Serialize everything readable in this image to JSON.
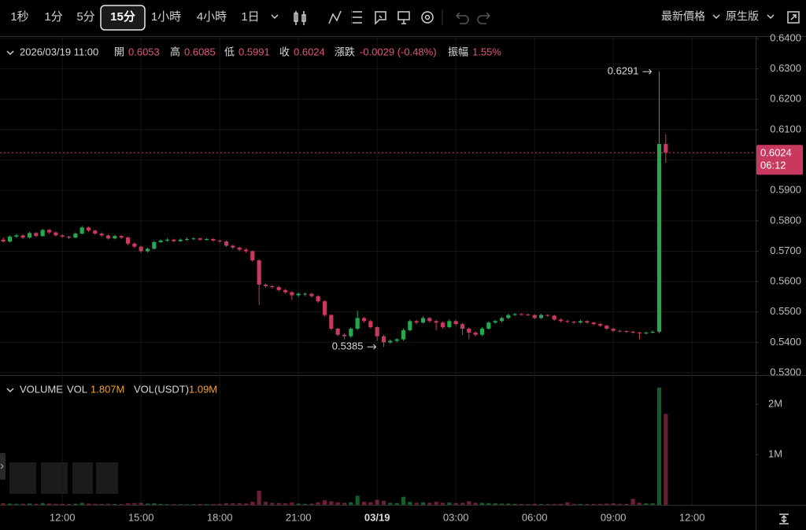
{
  "toolbar": {
    "intervals": [
      "1秒",
      "1分",
      "5分",
      "15分",
      "1小時",
      "4小時",
      "1日"
    ],
    "selected": 3,
    "price_type": "最新價格",
    "view": "原生版"
  },
  "chart_data": {
    "type": "candlestick",
    "info": {
      "date": "2026/03/19 11:00",
      "open_label": "開",
      "high_label": "高",
      "low_label": "低",
      "close_label": "收",
      "change_label": "漲跌",
      "change": "-0.0029 (-0.48%)",
      "amplitude_label": "振幅",
      "amplitude": "1.55%"
    },
    "volume_legend": {
      "title": "VOLUME",
      "vol_label": "VOL",
      "vol_usdt_label": "VOL(USDT)",
      "vol_usdt": "1.09M"
    },
    "volume_label": "1.807M",
    "countdown": "06:12",
    "colors": {
      "up": "#26a84f",
      "down": "#c8395f"
    },
    "xlim": [
      -0.5,
      114.7
    ],
    "xticks": [
      {
        "value": 9,
        "label": "12:00"
      },
      {
        "value": 21,
        "label": "15:00"
      },
      {
        "value": 33,
        "label": "18:00"
      },
      {
        "value": 45,
        "label": "21:00"
      },
      {
        "value": 57,
        "label": "03/19"
      },
      {
        "value": 69,
        "label": "03:00"
      },
      {
        "value": 81,
        "label": "06:00"
      },
      {
        "value": 93,
        "label": "09:00"
      },
      {
        "value": 105,
        "label": "12:00"
      }
    ],
    "ylim": [
      0.53,
      0.64
    ],
    "yticks": [
      {
        "value": 0.53,
        "label": "0.5300"
      },
      {
        "value": 0.54,
        "label": "0.5400"
      },
      {
        "value": 0.55,
        "label": "0.5500"
      },
      {
        "value": 0.56,
        "label": "0.5600"
      },
      {
        "value": 0.57,
        "label": "0.5700"
      },
      {
        "value": 0.58,
        "label": "0.5800"
      },
      {
        "value": 0.59,
        "label": "0.5900"
      },
      {
        "value": 0.6,
        "label": "0.6000"
      },
      {
        "value": 0.61,
        "label": "0.6100"
      },
      {
        "value": 0.62,
        "label": "0.6200"
      },
      {
        "value": 0.63,
        "label": "0.6300"
      },
      {
        "value": 0.64,
        "label": "0.6400"
      }
    ],
    "vlim": [
      0,
      2500000
    ],
    "vticks": [
      {
        "value": 1000000,
        "label": "1M"
      },
      {
        "value": 2000000,
        "label": "2M"
      }
    ],
    "grid": true,
    "open": [
      0.5738,
      0.5732,
      0.5748,
      0.5752,
      0.5745,
      0.576,
      0.575,
      0.577,
      0.5762,
      0.5752,
      0.5748,
      0.5745,
      0.5758,
      0.5778,
      0.5768,
      0.5758,
      0.5752,
      0.5742,
      0.575,
      0.5745,
      0.5725,
      0.5715,
      0.57,
      0.5708,
      0.573,
      0.5735,
      0.5738,
      0.5733,
      0.5738,
      0.574,
      0.5742,
      0.5738,
      0.574,
      0.5735,
      0.5732,
      0.5718,
      0.5712,
      0.5705,
      0.57,
      0.567,
      0.559,
      0.5585,
      0.5582,
      0.5572,
      0.5565,
      0.5555,
      0.556,
      0.556,
      0.5552,
      0.5535,
      0.549,
      0.5445,
      0.5425,
      0.542,
      0.5445,
      0.548,
      0.547,
      0.545,
      0.542,
      0.54,
      0.5405,
      0.541,
      0.544,
      0.547,
      0.5465,
      0.548,
      0.547,
      0.5465,
      0.545,
      0.547,
      0.546,
      0.5445,
      0.5432,
      0.5425,
      0.5445,
      0.5465,
      0.547,
      0.548,
      0.549,
      0.5493,
      0.5492,
      0.549,
      0.548,
      0.549,
      0.5488,
      0.5475,
      0.547,
      0.5468,
      0.5465,
      0.547,
      0.5465,
      0.546,
      0.5455,
      0.5445,
      0.5438,
      0.5437,
      0.5435,
      0.5432,
      0.543,
      0.5432,
      0.5435,
      0.6053
    ],
    "high": [
      0.5745,
      0.5752,
      0.5757,
      0.5756,
      0.5764,
      0.5763,
      0.5774,
      0.5773,
      0.5765,
      0.5756,
      0.5751,
      0.5762,
      0.5783,
      0.5781,
      0.5771,
      0.5762,
      0.5755,
      0.5754,
      0.5753,
      0.5748,
      0.5729,
      0.5718,
      0.5712,
      0.5734,
      0.5739,
      0.5743,
      0.5741,
      0.5742,
      0.5745,
      0.5746,
      0.5745,
      0.5743,
      0.5743,
      0.5738,
      0.5735,
      0.5722,
      0.5715,
      0.571,
      0.5703,
      0.5673,
      0.5594,
      0.5589,
      0.5586,
      0.5576,
      0.5568,
      0.5564,
      0.5564,
      0.5563,
      0.5555,
      0.5538,
      0.5493,
      0.5448,
      0.543,
      0.545,
      0.5505,
      0.5484,
      0.5474,
      0.5453,
      0.5425,
      0.541,
      0.5414,
      0.5445,
      0.5475,
      0.5474,
      0.5486,
      0.5484,
      0.5474,
      0.5469,
      0.5475,
      0.5474,
      0.5464,
      0.5449,
      0.5436,
      0.545,
      0.5469,
      0.5474,
      0.5484,
      0.5494,
      0.5497,
      0.5496,
      0.5495,
      0.5493,
      0.5494,
      0.5493,
      0.5491,
      0.5479,
      0.5474,
      0.5471,
      0.5474,
      0.5473,
      0.5468,
      0.5463,
      0.5458,
      0.5448,
      0.5441,
      0.544,
      0.5438,
      0.5435,
      0.5436,
      0.5439,
      0.6291,
      0.6085
    ],
    "low": [
      0.5728,
      0.5729,
      0.5744,
      0.574,
      0.5742,
      0.5746,
      0.5747,
      0.5757,
      0.5748,
      0.5744,
      0.574,
      0.5742,
      0.5755,
      0.5763,
      0.5754,
      0.5747,
      0.5738,
      0.5739,
      0.574,
      0.572,
      0.571,
      0.5695,
      0.5696,
      0.5705,
      0.5727,
      0.5731,
      0.5729,
      0.573,
      0.5734,
      0.5737,
      0.5734,
      0.5735,
      0.5731,
      0.5728,
      0.5714,
      0.5707,
      0.57,
      0.5695,
      0.5665,
      0.5523,
      0.558,
      0.5577,
      0.5567,
      0.556,
      0.554,
      0.555,
      0.5552,
      0.5547,
      0.553,
      0.5485,
      0.544,
      0.542,
      0.541,
      0.5415,
      0.544,
      0.5465,
      0.5445,
      0.5405,
      0.5385,
      0.5395,
      0.54,
      0.5405,
      0.5436,
      0.546,
      0.5462,
      0.5465,
      0.544,
      0.5445,
      0.5447,
      0.5455,
      0.5425,
      0.541,
      0.542,
      0.5421,
      0.5442,
      0.5461,
      0.5466,
      0.5476,
      0.5486,
      0.5488,
      0.5486,
      0.5476,
      0.5477,
      0.5484,
      0.5471,
      0.5466,
      0.5464,
      0.5461,
      0.5462,
      0.5461,
      0.5456,
      0.5451,
      0.5441,
      0.5434,
      0.5433,
      0.5431,
      0.5428,
      0.541,
      0.5426,
      0.5429,
      0.543,
      0.5991
    ],
    "close": [
      0.5732,
      0.5748,
      0.5752,
      0.5745,
      0.576,
      0.575,
      0.577,
      0.5762,
      0.5752,
      0.5748,
      0.5745,
      0.5758,
      0.5778,
      0.5768,
      0.5758,
      0.5752,
      0.5742,
      0.575,
      0.5745,
      0.5725,
      0.5715,
      0.57,
      0.5708,
      0.573,
      0.5735,
      0.5738,
      0.5733,
      0.5738,
      0.574,
      0.5742,
      0.5738,
      0.574,
      0.5735,
      0.5732,
      0.5718,
      0.5712,
      0.5705,
      0.57,
      0.567,
      0.559,
      0.5585,
      0.5582,
      0.5572,
      0.5565,
      0.5555,
      0.556,
      0.556,
      0.5552,
      0.5535,
      0.549,
      0.5445,
      0.5425,
      0.542,
      0.5445,
      0.548,
      0.547,
      0.545,
      0.542,
      0.54,
      0.5405,
      0.541,
      0.544,
      0.547,
      0.5465,
      0.548,
      0.547,
      0.5465,
      0.545,
      0.547,
      0.546,
      0.5445,
      0.5432,
      0.5425,
      0.5445,
      0.5465,
      0.547,
      0.548,
      0.549,
      0.5493,
      0.5492,
      0.549,
      0.548,
      0.549,
      0.5488,
      0.5475,
      0.547,
      0.5468,
      0.5465,
      0.547,
      0.5465,
      0.546,
      0.5455,
      0.5445,
      0.5438,
      0.5437,
      0.5435,
      0.5432,
      0.543,
      0.5432,
      0.5435,
      0.6053,
      0.6024
    ],
    "volume": [
      30000,
      25000,
      20000,
      22000,
      28000,
      20000,
      35000,
      25000,
      20000,
      18000,
      15000,
      22000,
      40000,
      25000,
      20000,
      18000,
      22000,
      15000,
      14000,
      30000,
      35000,
      40000,
      25000,
      30000,
      15000,
      12000,
      14000,
      12000,
      10000,
      12000,
      14000,
      12000,
      15000,
      18000,
      35000,
      30000,
      30000,
      25000,
      60000,
      280000,
      60000,
      40000,
      35000,
      30000,
      45000,
      25000,
      20000,
      25000,
      50000,
      90000,
      70000,
      50000,
      40000,
      50000,
      180000,
      60000,
      50000,
      100000,
      80000,
      40000,
      35000,
      160000,
      60000,
      40000,
      50000,
      40000,
      60000,
      40000,
      45000,
      35000,
      40000,
      70000,
      40000,
      40000,
      35000,
      30000,
      25000,
      25000,
      20000,
      15000,
      15000,
      20000,
      15000,
      12000,
      15000,
      20000,
      50000,
      20000,
      15000,
      15000,
      18000,
      20000,
      25000,
      30000,
      20000,
      18000,
      120000,
      40000,
      30000,
      30000,
      2330000,
      1807000
    ]
  }
}
